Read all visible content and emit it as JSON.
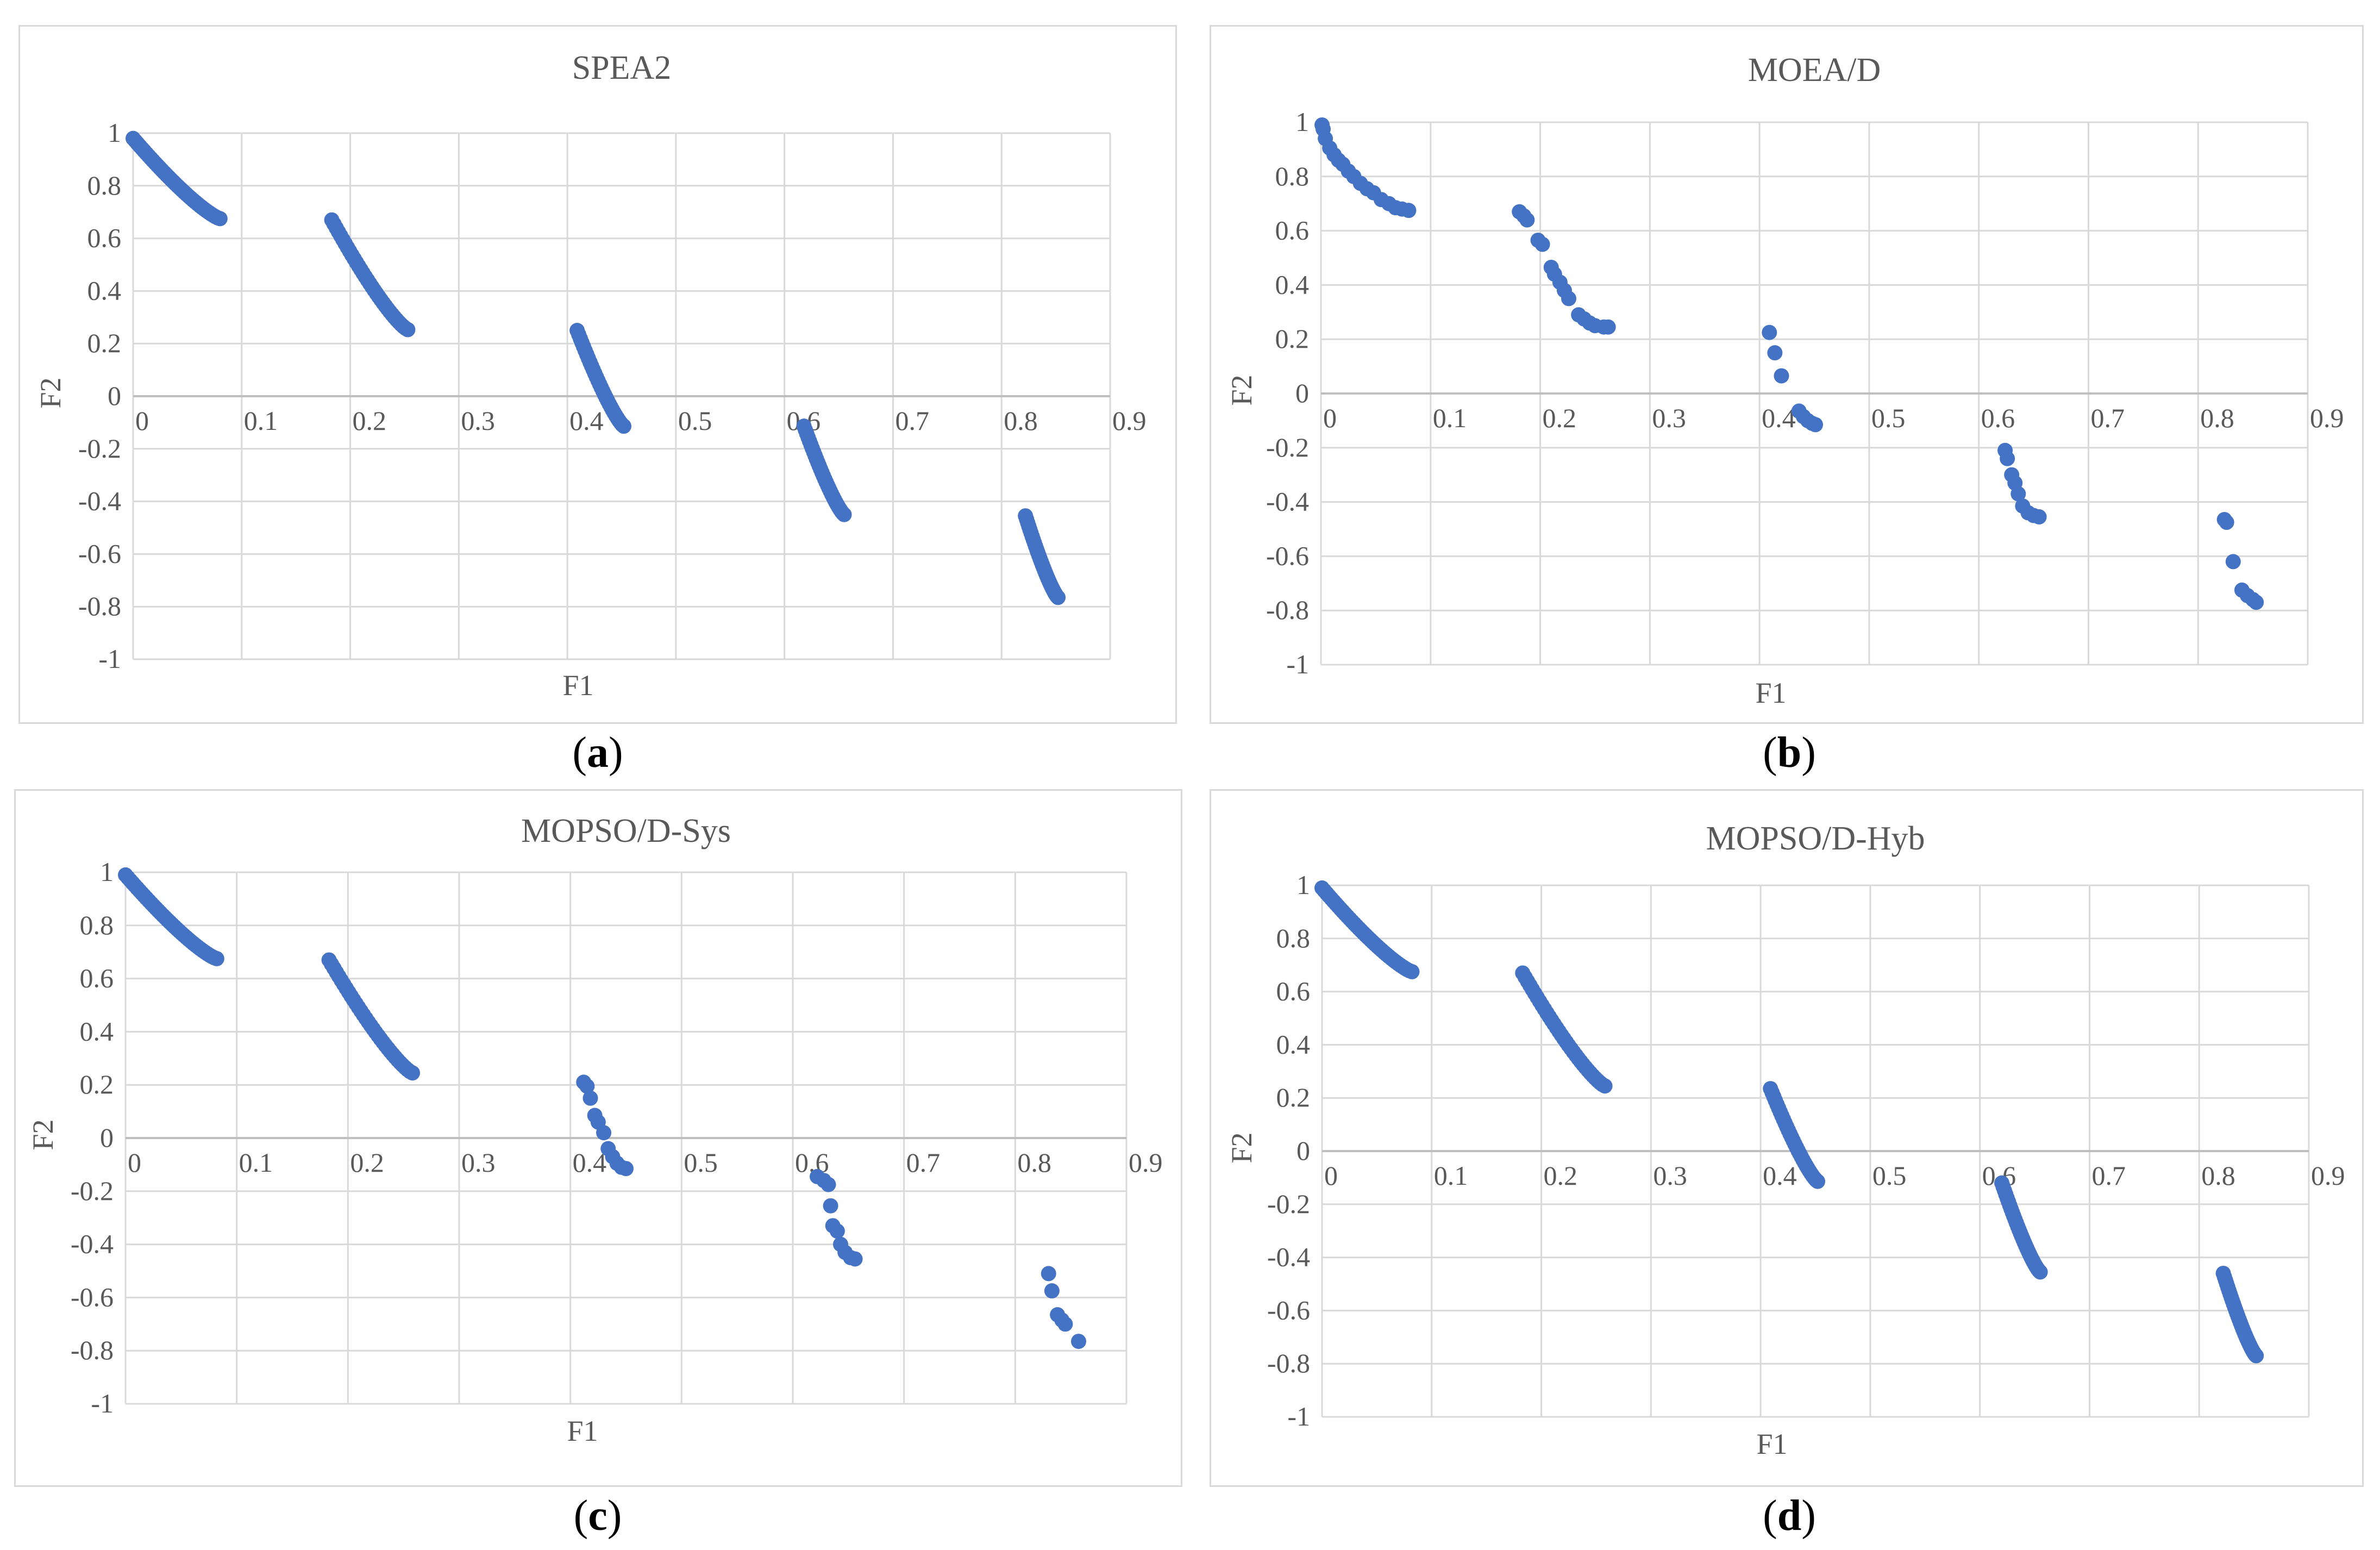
{
  "panel_ids": [
    "a",
    "b",
    "c",
    "d"
  ],
  "series_color": "#4472c4",
  "grid_color": "#d9d9d9",
  "chart_data": [
    {
      "id": "a",
      "type": "scatter",
      "title": "SPEA2",
      "caption_letter": "a",
      "xlabel": "F1",
      "ylabel": "F2",
      "xlim": [
        0,
        0.9
      ],
      "ylim": [
        -1,
        1
      ],
      "xticks": [
        "0",
        "0.1",
        "0.2",
        "0.3",
        "0.4",
        "0.5",
        "0.6",
        "0.7",
        "0.8",
        "0.9"
      ],
      "yticks": [
        "1",
        "0.8",
        "0.6",
        "0.4",
        "0.2",
        "0",
        "-0.2",
        "-0.4",
        "-0.6",
        "-0.8",
        "-1"
      ],
      "segments": [
        {
          "x": [
            0.0,
            0.08
          ],
          "y": [
            0.98,
            0.675
          ],
          "points": 40
        },
        {
          "x": [
            0.183,
            0.253
          ],
          "y": [
            0.67,
            0.253
          ],
          "points": 35
        },
        {
          "x": [
            0.409,
            0.452
          ],
          "y": [
            0.25,
            -0.114
          ],
          "points": 30
        },
        {
          "x": [
            0.618,
            0.655
          ],
          "y": [
            -0.114,
            -0.45
          ],
          "points": 30
        },
        {
          "x": [
            0.822,
            0.852
          ],
          "y": [
            -0.455,
            -0.765
          ],
          "points": 30
        }
      ]
    },
    {
      "id": "b",
      "type": "scatter",
      "title": "MOEA/D",
      "caption_letter": "b",
      "xlabel": "F1",
      "ylabel": "F2",
      "xlim": [
        0,
        0.9
      ],
      "ylim": [
        -1,
        1
      ],
      "xticks": [
        "0",
        "0.1",
        "0.2",
        "0.3",
        "0.4",
        "0.5",
        "0.6",
        "0.7",
        "0.8",
        "0.9"
      ],
      "yticks": [
        "1",
        "0.8",
        "0.6",
        "0.4",
        "0.2",
        "0",
        "-0.2",
        "-0.4",
        "-0.6",
        "-0.8",
        "-1"
      ],
      "points": [
        [
          0.001,
          0.99
        ],
        [
          0.002,
          0.975
        ],
        [
          0.004,
          0.94
        ],
        [
          0.008,
          0.905
        ],
        [
          0.012,
          0.88
        ],
        [
          0.016,
          0.86
        ],
        [
          0.02,
          0.845
        ],
        [
          0.025,
          0.82
        ],
        [
          0.03,
          0.8
        ],
        [
          0.036,
          0.775
        ],
        [
          0.042,
          0.755
        ],
        [
          0.048,
          0.74
        ],
        [
          0.055,
          0.715
        ],
        [
          0.062,
          0.7
        ],
        [
          0.068,
          0.685
        ],
        [
          0.074,
          0.68
        ],
        [
          0.08,
          0.675
        ],
        [
          0.181,
          0.67
        ],
        [
          0.185,
          0.655
        ],
        [
          0.188,
          0.64
        ],
        [
          0.198,
          0.565
        ],
        [
          0.202,
          0.55
        ],
        [
          0.21,
          0.465
        ],
        [
          0.213,
          0.44
        ],
        [
          0.218,
          0.41
        ],
        [
          0.222,
          0.38
        ],
        [
          0.226,
          0.35
        ],
        [
          0.235,
          0.29
        ],
        [
          0.24,
          0.275
        ],
        [
          0.245,
          0.26
        ],
        [
          0.25,
          0.25
        ],
        [
          0.258,
          0.245
        ],
        [
          0.262,
          0.245
        ],
        [
          0.409,
          0.225
        ],
        [
          0.414,
          0.15
        ],
        [
          0.42,
          0.065
        ],
        [
          0.436,
          -0.065
        ],
        [
          0.44,
          -0.085
        ],
        [
          0.444,
          -0.1
        ],
        [
          0.448,
          -0.11
        ],
        [
          0.451,
          -0.115
        ],
        [
          0.624,
          -0.21
        ],
        [
          0.626,
          -0.24
        ],
        [
          0.63,
          -0.3
        ],
        [
          0.633,
          -0.33
        ],
        [
          0.636,
          -0.37
        ],
        [
          0.64,
          -0.415
        ],
        [
          0.645,
          -0.44
        ],
        [
          0.65,
          -0.45
        ],
        [
          0.655,
          -0.455
        ],
        [
          0.824,
          -0.465
        ],
        [
          0.826,
          -0.475
        ],
        [
          0.832,
          -0.62
        ],
        [
          0.84,
          -0.725
        ],
        [
          0.845,
          -0.745
        ],
        [
          0.85,
          -0.76
        ],
        [
          0.853,
          -0.77
        ]
      ]
    },
    {
      "id": "c",
      "type": "scatter",
      "title": "MOPSO/D-Sys",
      "caption_letter": "c",
      "xlabel": "F1",
      "ylabel": "F2",
      "xlim": [
        0,
        0.9
      ],
      "ylim": [
        -1,
        1
      ],
      "xticks": [
        "0",
        "0.1",
        "0.2",
        "0.3",
        "0.4",
        "0.5",
        "0.6",
        "0.7",
        "0.8",
        "0.9"
      ],
      "yticks": [
        "1",
        "0.8",
        "0.6",
        "0.4",
        "0.2",
        "0",
        "-0.2",
        "-0.4",
        "-0.6",
        "-0.8",
        "-1"
      ],
      "segments": [
        {
          "x": [
            0.0,
            0.082
          ],
          "y": [
            0.99,
            0.675
          ],
          "points": 40
        },
        {
          "x": [
            0.183,
            0.258
          ],
          "y": [
            0.67,
            0.245
          ],
          "points": 35
        }
      ],
      "points": [
        [
          0.412,
          0.21
        ],
        [
          0.415,
          0.195
        ],
        [
          0.418,
          0.15
        ],
        [
          0.422,
          0.085
        ],
        [
          0.425,
          0.06
        ],
        [
          0.43,
          0.02
        ],
        [
          0.434,
          -0.04
        ],
        [
          0.438,
          -0.07
        ],
        [
          0.442,
          -0.095
        ],
        [
          0.446,
          -0.11
        ],
        [
          0.45,
          -0.115
        ],
        [
          0.622,
          -0.145
        ],
        [
          0.628,
          -0.16
        ],
        [
          0.632,
          -0.175
        ],
        [
          0.634,
          -0.255
        ],
        [
          0.636,
          -0.33
        ],
        [
          0.64,
          -0.35
        ],
        [
          0.643,
          -0.4
        ],
        [
          0.647,
          -0.43
        ],
        [
          0.652,
          -0.45
        ],
        [
          0.656,
          -0.455
        ],
        [
          0.83,
          -0.51
        ],
        [
          0.833,
          -0.575
        ],
        [
          0.838,
          -0.665
        ],
        [
          0.842,
          -0.685
        ],
        [
          0.845,
          -0.7
        ],
        [
          0.857,
          -0.765
        ]
      ]
    },
    {
      "id": "d",
      "type": "scatter",
      "title": "MOPSO/D-Hyb",
      "caption_letter": "d",
      "xlabel": "F1",
      "ylabel": "F2",
      "xlim": [
        0,
        0.9
      ],
      "ylim": [
        -1,
        1
      ],
      "xticks": [
        "0",
        "0.1",
        "0.2",
        "0.3",
        "0.4",
        "0.5",
        "0.6",
        "0.7",
        "0.8",
        "0.9"
      ],
      "yticks": [
        "1",
        "0.8",
        "0.6",
        "0.4",
        "0.2",
        "0",
        "-0.2",
        "-0.4",
        "-0.6",
        "-0.8",
        "-1"
      ],
      "segments": [
        {
          "x": [
            0.0,
            0.082
          ],
          "y": [
            0.99,
            0.675
          ],
          "points": 40
        },
        {
          "x": [
            0.183,
            0.258
          ],
          "y": [
            0.67,
            0.245
          ],
          "points": 35
        },
        {
          "x": [
            0.409,
            0.452
          ],
          "y": [
            0.235,
            -0.114
          ],
          "points": 30
        },
        {
          "x": [
            0.62,
            0.655
          ],
          "y": [
            -0.12,
            -0.455
          ],
          "points": 30
        },
        {
          "x": [
            0.822,
            0.852
          ],
          "y": [
            -0.46,
            -0.77
          ],
          "points": 30
        }
      ]
    }
  ]
}
